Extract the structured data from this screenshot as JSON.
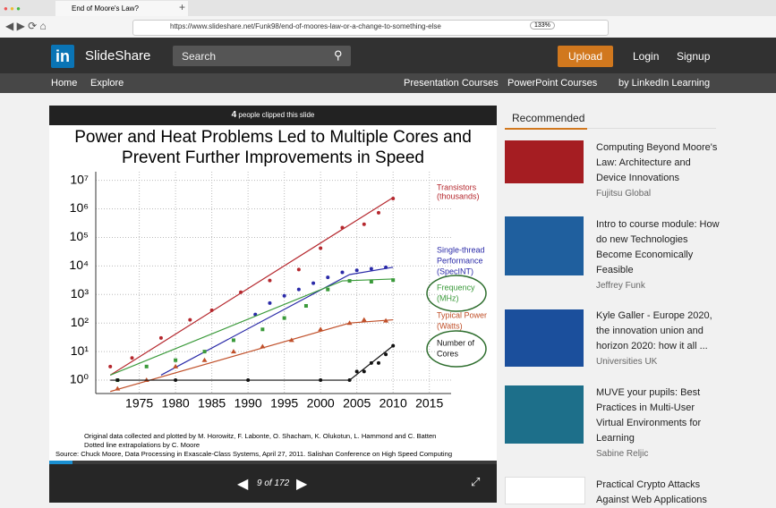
{
  "browser": {
    "tab_title": "End of Moore's Law?",
    "url": "https://www.slideshare.net/Funk98/end-of-moores-law-or-a-change-to-something-else",
    "zoom": "133%"
  },
  "header": {
    "logo": "in",
    "brand": "SlideShare",
    "search_placeholder": "Search",
    "upload": "Upload",
    "login": "Login",
    "signup": "Signup"
  },
  "nav": {
    "left": [
      "Home",
      "Explore"
    ],
    "right": [
      "Presentation Courses",
      "PowerPoint Courses",
      "by LinkedIn Learning"
    ]
  },
  "slide": {
    "clip_count": 4,
    "clip_text": "people clipped this slide",
    "page_label": "9 of 172"
  },
  "recommended": {
    "title": "Recommended",
    "items": [
      {
        "title": "Computing Beyond Moore's Law: Architecture and Device Innovations",
        "author": "Fujitsu Global"
      },
      {
        "title": "Intro to course module: How do new Technologies Become Economically Feasible",
        "author": "Jeffrey Funk"
      },
      {
        "title": "Kyle Galler - Europe 2020, the innovation union and horizon 2020: how it all ...",
        "author": "Universities UK"
      },
      {
        "title": "MUVE your pupils: Best Practices in Multi-User Virtual Environments for Learning",
        "author": "Sabine Reljic"
      },
      {
        "title": "Practical Crypto Attacks Against Web Applications",
        "author": ""
      }
    ]
  },
  "chart_data": {
    "type": "scatter",
    "title_lines": [
      "Power and Heat Problems Led to Multiple Cores and",
      "Prevent Further Improvements in Speed"
    ],
    "log_y": true,
    "grid": true,
    "xlim": [
      1969,
      2018
    ],
    "ylim": [
      0.34,
      20000000
    ],
    "xticks": [
      1975,
      1980,
      1985,
      1990,
      1995,
      2000,
      2005,
      2010,
      2015
    ],
    "yticks": [
      {
        "value": 1,
        "label": "10⁰"
      },
      {
        "value": 10,
        "label": "10¹"
      },
      {
        "value": 100,
        "label": "10²"
      },
      {
        "value": 1000,
        "label": "10³"
      },
      {
        "value": 10000,
        "label": "10⁴"
      },
      {
        "value": 100000,
        "label": "10⁵"
      },
      {
        "value": 1000000,
        "label": "10⁶"
      },
      {
        "value": 10000000,
        "label": "10⁷"
      }
    ],
    "series": [
      {
        "label_lines": [
          "Transistors",
          "(thousands)"
        ],
        "color": "#b5282e",
        "marker": "circle",
        "x": [
          1971,
          1974,
          1978,
          1982,
          1985,
          1989,
          1993,
          1997,
          2000,
          2003,
          2006,
          2008,
          2010
        ],
        "y": [
          3,
          6,
          30,
          130,
          280,
          1200,
          3100,
          7500,
          42000,
          220000,
          290000,
          730000,
          2300000
        ],
        "fit_x": [
          1971,
          2010
        ],
        "fit_y": [
          1.5,
          2500000
        ]
      },
      {
        "label_lines": [
          "Single-thread",
          "Performance",
          "(SpecINT)"
        ],
        "color": "#2a2aa8",
        "marker": "circle",
        "x": [
          1991,
          1993,
          1995,
          1997,
          1999,
          2001,
          2003,
          2005,
          2007,
          2009
        ],
        "y": [
          200,
          500,
          900,
          1500,
          2500,
          4000,
          6000,
          7000,
          8000,
          9000
        ],
        "fit_x": [
          1978,
          2004,
          2010
        ],
        "fit_y": [
          1.5,
          5000,
          9000
        ]
      },
      {
        "label_lines": [
          "Frequency",
          "(MHz)"
        ],
        "color": "#3a9a3a",
        "marker": "square",
        "x": [
          1972,
          1976,
          1980,
          1984,
          1988,
          1992,
          1995,
          1998,
          2001,
          2004,
          2007,
          2010
        ],
        "y": [
          1,
          3,
          5,
          10,
          25,
          60,
          150,
          400,
          1500,
          3000,
          2800,
          3200
        ],
        "fit_x": [
          1971,
          2003,
          2010
        ],
        "fit_y": [
          1.5,
          3000,
          3500
        ]
      },
      {
        "label_lines": [
          "Typical Power",
          "(Watts)"
        ],
        "color": "#c0502a",
        "marker": "triangle",
        "x": [
          1972,
          1976,
          1980,
          1984,
          1988,
          1992,
          1996,
          2000,
          2004,
          2006,
          2009
        ],
        "y": [
          0.5,
          1,
          3,
          5,
          10,
          15,
          25,
          60,
          100,
          130,
          120
        ],
        "fit_x": [
          1971,
          2004,
          2010
        ],
        "fit_y": [
          0.4,
          100,
          130
        ]
      },
      {
        "label_lines": [
          "Number of",
          "Cores"
        ],
        "color": "#111111",
        "marker": "circle",
        "x": [
          1972,
          1980,
          1990,
          2000,
          2004,
          2005,
          2006,
          2007,
          2008,
          2009,
          2010
        ],
        "y": [
          1,
          1,
          1,
          1,
          1,
          2,
          2,
          4,
          4,
          8,
          16
        ],
        "fit_x": [
          1971,
          2004,
          2010
        ],
        "fit_y": [
          1,
          1,
          16
        ]
      }
    ],
    "source_lines": [
      "Original data collected and plotted by M. Horowitz, F. Labonte, O. Shacham, K. Olukotun, L. Hammond and C. Batten",
      "Dotted line extrapolations by C. Moore",
      "Source: Chuck Moore, Data Processing in Exascale-Class Systems, April 27, 2011. Salishan Conference on High Speed Computing"
    ]
  }
}
